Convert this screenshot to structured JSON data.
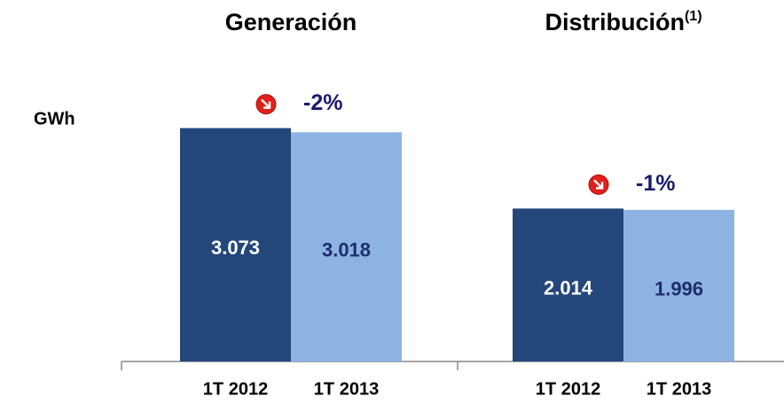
{
  "chart_data": [
    {
      "type": "bar",
      "title": "Generación",
      "y_label": "GWh",
      "categories": [
        "1T 2012",
        "1T 2013"
      ],
      "values": [
        3073,
        3018
      ],
      "value_labels": [
        "3.073",
        "3.018"
      ],
      "colors": [
        "#23477a",
        "#8db3e2"
      ],
      "annotation": "-2%",
      "ylim": [
        0,
        3500
      ]
    },
    {
      "type": "bar",
      "title": "Distribución",
      "title_note": "(1)",
      "categories": [
        "1T 2012",
        "1T 2013"
      ],
      "values": [
        2014,
        1996
      ],
      "value_labels": [
        "2.014",
        "1.996"
      ],
      "colors": [
        "#23477a",
        "#8db3e2"
      ],
      "annotation": "-1%",
      "ylim": [
        0,
        3500
      ]
    }
  ]
}
